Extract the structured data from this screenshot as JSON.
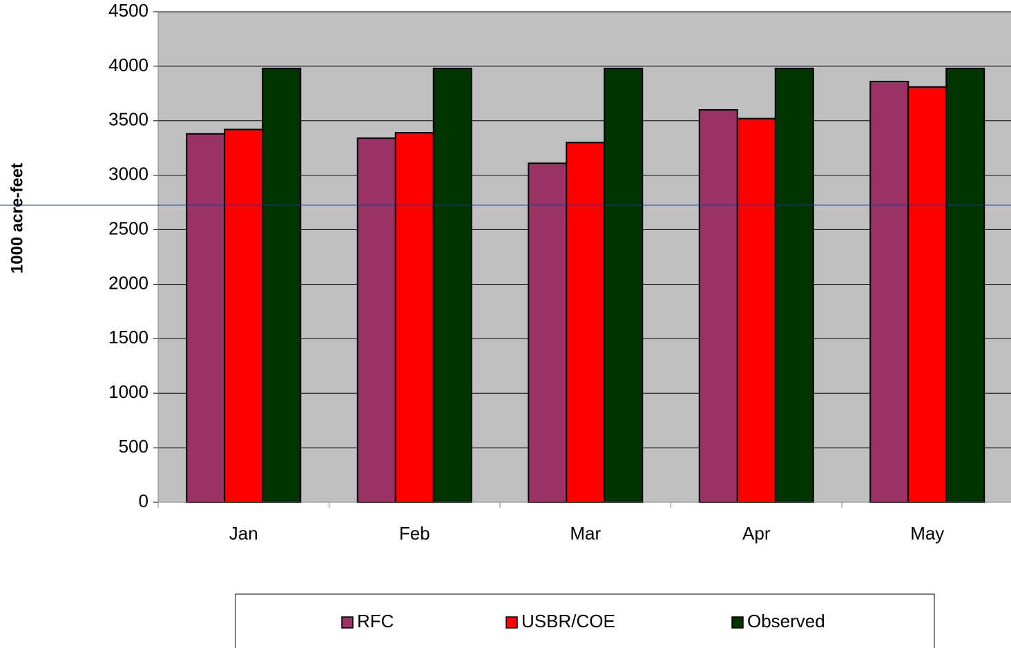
{
  "chart_data": {
    "type": "bar",
    "y_label": "1000 acre-feet",
    "categories": [
      "Jan",
      "Feb",
      "Mar",
      "Apr",
      "May"
    ],
    "series": [
      {
        "name": "RFC",
        "color": "#993366",
        "values": [
          3380,
          3340,
          3110,
          3600,
          3860
        ]
      },
      {
        "name": "USBR/COE",
        "color": "#ff0000",
        "values": [
          3420,
          3390,
          3300,
          3520,
          3810
        ]
      },
      {
        "name": "Observed",
        "color": "#003300",
        "values": [
          3980,
          3980,
          3980,
          3980,
          3980
        ]
      }
    ],
    "ylim": [
      0,
      4500
    ],
    "yticks": [
      0,
      500,
      1000,
      1500,
      2000,
      2500,
      3000,
      3500,
      4000,
      4500
    ],
    "grid": true,
    "plot_background": "#c0c0c0",
    "legend": "bottom"
  }
}
